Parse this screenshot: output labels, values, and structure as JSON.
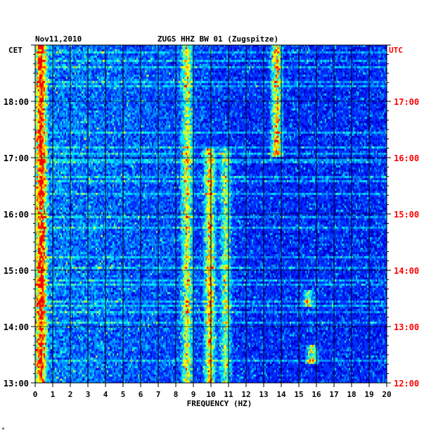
{
  "header": {
    "date": "Nov11,2010",
    "station": "ZUGS HHZ BW 01 (Zugspitze)"
  },
  "footnote": "*",
  "chart_data": {
    "type": "heatmap",
    "title": "ZUGS HHZ BW 01 (Zugspitze)",
    "date": "Nov11,2010",
    "xlabel": "FREQUENCY (HZ)",
    "xlim": [
      0,
      20
    ],
    "x_ticks": [
      "0",
      "1",
      "2",
      "3",
      "4",
      "5",
      "6",
      "7",
      "8",
      "9",
      "10",
      "11",
      "12",
      "13",
      "14",
      "15",
      "16",
      "17",
      "18",
      "19",
      "20"
    ],
    "left_axis": {
      "label": "CET",
      "range": [
        "13:00",
        "19:00"
      ],
      "ticks": [
        "13:00",
        "14:00",
        "15:00",
        "16:00",
        "17:00",
        "18:00"
      ]
    },
    "right_axis": {
      "label": "UTC",
      "range": [
        "12:00",
        "18:00"
      ],
      "ticks": [
        "12:00",
        "13:00",
        "14:00",
        "15:00",
        "16:00",
        "17:00"
      ]
    },
    "colormap": [
      "#00008a",
      "#0000d0",
      "#0030ff",
      "#0090ff",
      "#00e8ff",
      "#80ff80",
      "#ffff00",
      "#ff9000",
      "#ff0000"
    ],
    "grid": true,
    "features": [
      {
        "freq": 0.3,
        "from": "13:00",
        "to": "19:00",
        "intensity": 0.85
      },
      {
        "freq": 8.6,
        "from": "13:00",
        "to": "19:00",
        "intensity": 0.55
      },
      {
        "freq": 9.9,
        "from": "13:00",
        "to": "17:10",
        "intensity": 0.65
      },
      {
        "freq": 10.8,
        "from": "13:00",
        "to": "17:10",
        "intensity": 0.45
      },
      {
        "freq": 13.7,
        "from": "17:00",
        "to": "19:00",
        "intensity": 0.7
      },
      {
        "freq": 15.7,
        "from": "13:20",
        "to": "13:40",
        "intensity": 0.6
      },
      {
        "freq": 15.5,
        "from": "14:20",
        "to": "14:40",
        "intensity": 0.5
      }
    ],
    "colors": {
      "cet_text": "#000000",
      "utc_text": "#ff0000",
      "grid": "#000000",
      "background": "#00008a"
    }
  }
}
